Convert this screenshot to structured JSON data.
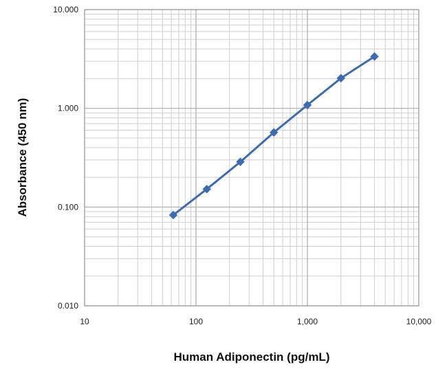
{
  "chart_data": {
    "type": "line",
    "title": "",
    "xlabel": "Human  Adiponectin (pg/mL)",
    "ylabel": "Absorbance (450 nm)",
    "x_scale": "log",
    "y_scale": "log",
    "xlim": [
      10,
      10000
    ],
    "ylim": [
      0.01,
      10
    ],
    "x_ticks": [
      10,
      100,
      1000,
      10000
    ],
    "x_tick_labels": [
      "10",
      "100",
      "1,000",
      "10,000"
    ],
    "y_ticks": [
      0.01,
      0.1,
      1,
      10
    ],
    "y_tick_labels": [
      "0.010",
      "0.100",
      "1.000",
      "10.000"
    ],
    "grid": true,
    "legend": "none",
    "series": [
      {
        "x": [
          62.5,
          125,
          250,
          500,
          1000,
          2000,
          4000
        ],
        "y": [
          0.083,
          0.152,
          0.287,
          0.57,
          1.08,
          2.02,
          3.35
        ]
      }
    ],
    "colors": {
      "series": "#3c6bb0",
      "grid_major": "#a9a9a9",
      "grid_minor": "#d0d0d0",
      "axis": "#8c8c8c"
    }
  }
}
